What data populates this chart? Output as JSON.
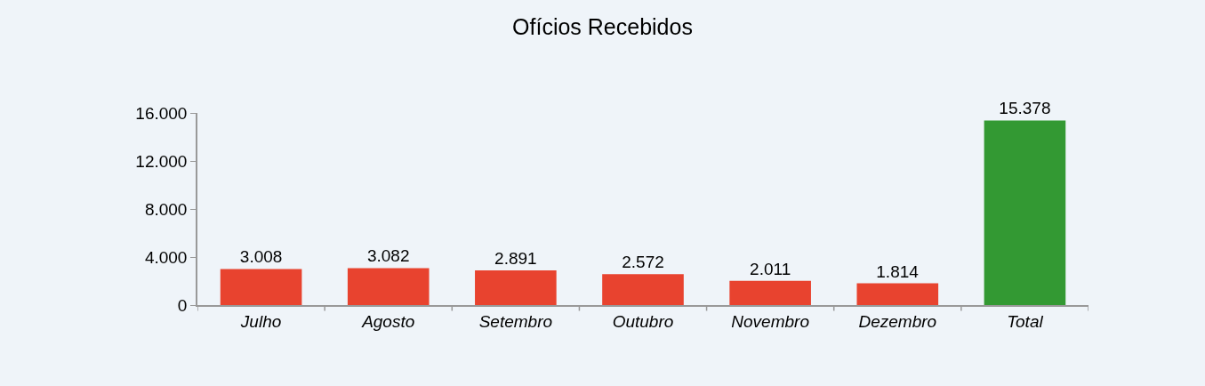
{
  "chart_data": {
    "type": "bar",
    "title": "Ofícios Recebidos",
    "categories": [
      "Julho",
      "Agosto",
      "Setembro",
      "Outubro",
      "Novembro",
      "Dezembro",
      "Total"
    ],
    "values": [
      3008,
      3082,
      2891,
      2572,
      2011,
      1814,
      15378
    ],
    "colors": [
      "#e8432f",
      "#e8432f",
      "#e8432f",
      "#e8432f",
      "#e8432f",
      "#e8432f",
      "#339933"
    ],
    "value_labels": [
      "3.008",
      "3.082",
      "2.891",
      "2.572",
      "2.011",
      "1.814",
      "15.378"
    ],
    "ylim": [
      0,
      16000
    ],
    "yticks": [
      0,
      {
        "value": 4000,
        "label": "4.000"
      },
      {
        "value": 8000,
        "label": "8.000"
      },
      {
        "value": 12000,
        "label": "12.000"
      },
      {
        "value": 16000,
        "label": "16.000"
      }
    ]
  }
}
